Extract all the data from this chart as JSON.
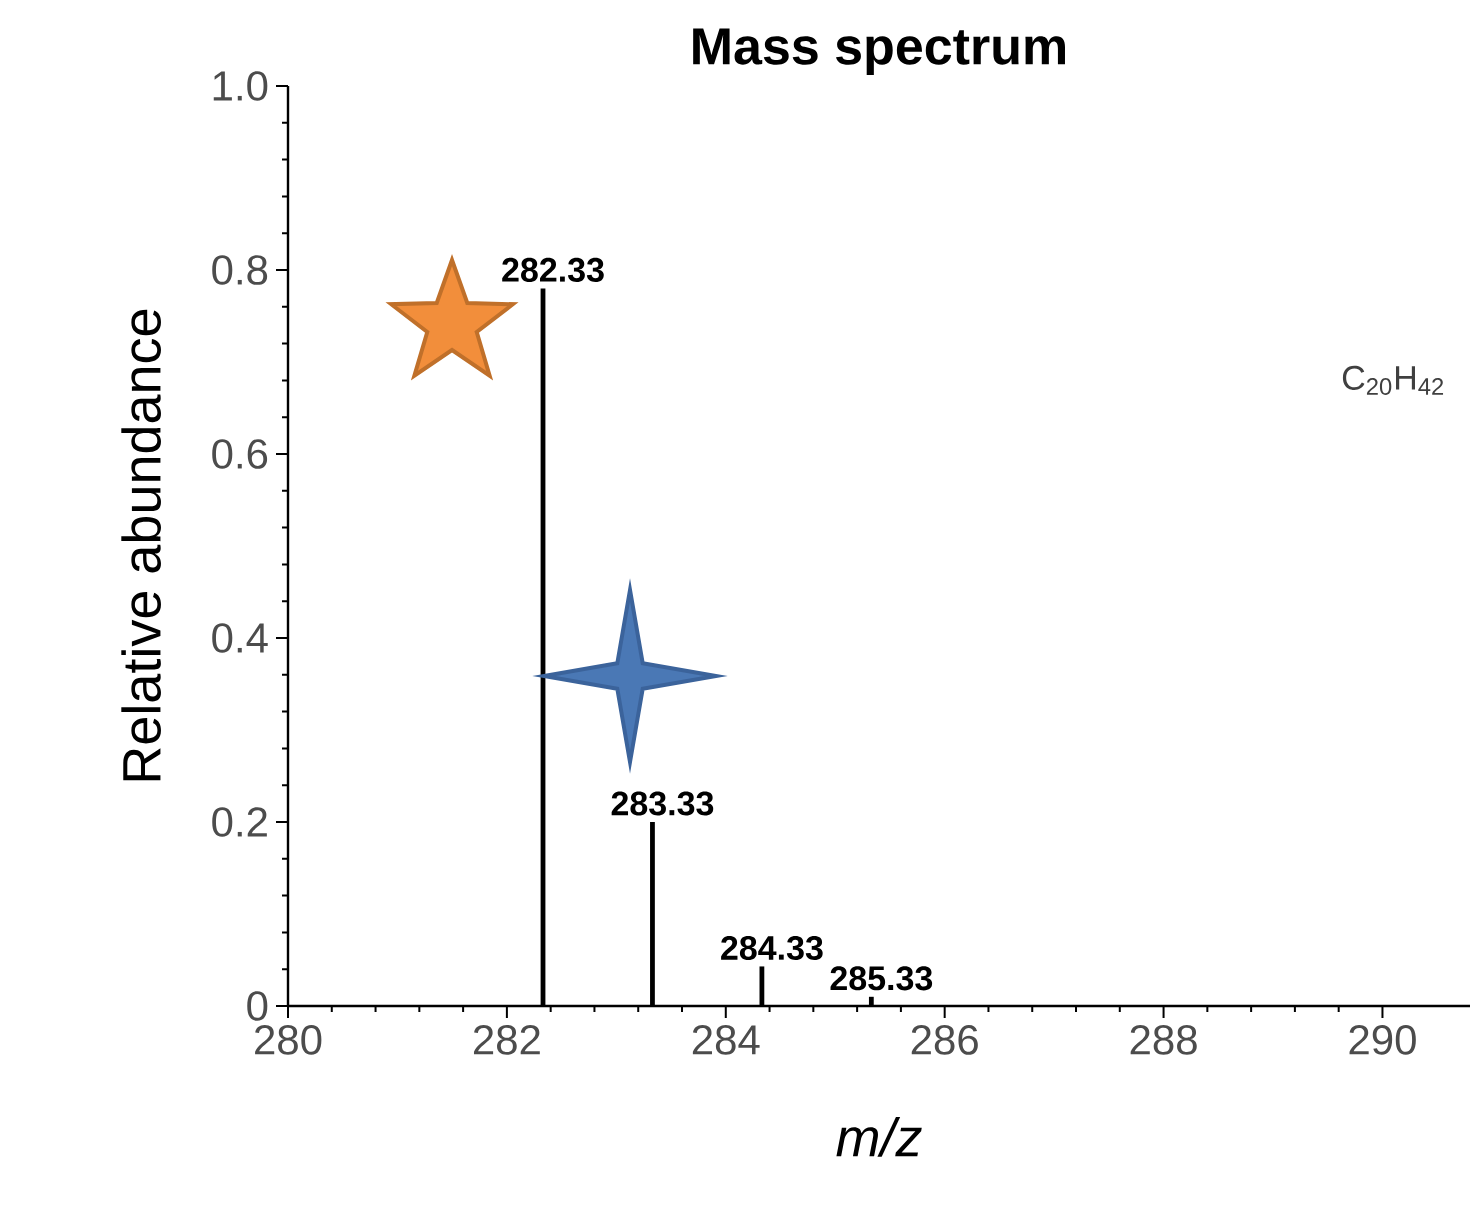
{
  "chart_data": {
    "type": "bar",
    "title": "Mass spectrum",
    "xlabel": "m/z",
    "ylabel": "Relative abundance",
    "x": [
      282.33,
      283.33,
      284.33,
      285.33
    ],
    "series": [
      {
        "color": "#000000",
        "values": [
          0.78,
          0.2,
          0.043,
          0.01
        ]
      }
    ],
    "xlim": [
      280,
      290.8
    ],
    "xticks": [
      280,
      282,
      284,
      286,
      288,
      290
    ],
    "ylim": [
      0,
      1
    ],
    "yticks": [
      0,
      0.2,
      0.4,
      0.6,
      0.8,
      {
        "value": 1,
        "label": "1.0"
      }
    ],
    "annotations": [
      {
        "text": "282.33",
        "x": 282.33,
        "y": 0.78
      },
      {
        "text": "283.33",
        "x": 283.33,
        "y": 0.2
      },
      {
        "text": "284.33",
        "x": 284.33,
        "y": 0.043
      },
      {
        "text": "285.33",
        "x": 285.33,
        "y": 0.01
      },
      "C$_{20}$H$_{42}$"
    ]
  }
}
